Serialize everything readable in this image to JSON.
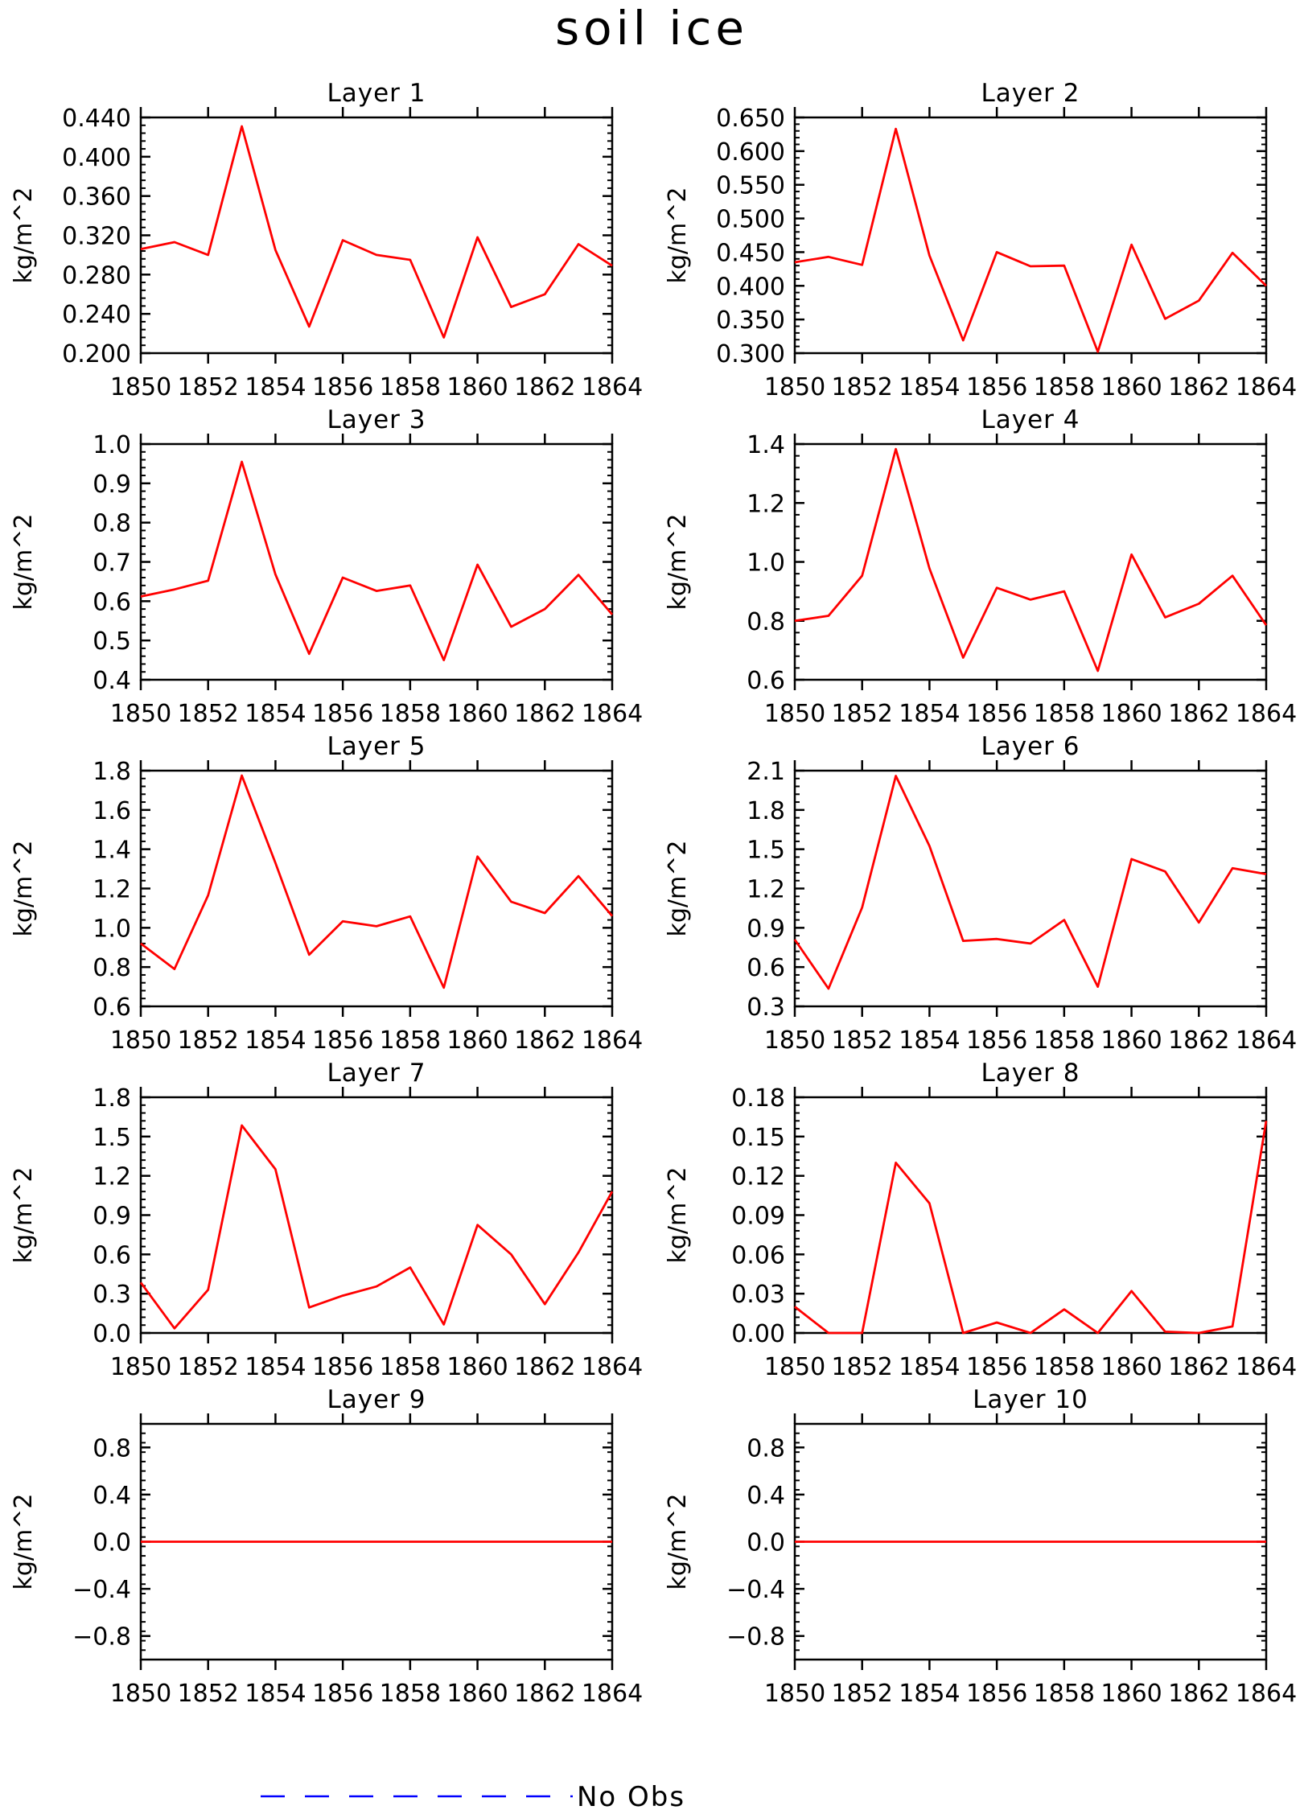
{
  "figure": {
    "title": "soil ice",
    "colors": {
      "series": "#ff0000",
      "obs": "#0000ff",
      "axis": "#000000"
    },
    "legend": {
      "label": "No Obs",
      "line_style": "dashed"
    }
  },
  "chart_data": [
    {
      "type": "line",
      "title": "Layer 1",
      "xlabel": "",
      "ylabel": "kg/m^2",
      "xlim": [
        1850,
        1864
      ],
      "ylim": [
        0.2,
        0.44
      ],
      "xticks": [
        "1850",
        "1852",
        "1854",
        "1856",
        "1858",
        "1860",
        "1862",
        "1864"
      ],
      "yticks": [
        "0.200",
        "0.240",
        "0.280",
        "0.320",
        "0.360",
        "0.400",
        "0.440"
      ],
      "x": [
        1850,
        1851,
        1852,
        1853,
        1854,
        1855,
        1856,
        1857,
        1858,
        1859,
        1860,
        1861,
        1862,
        1863,
        1864
      ],
      "series": [
        {
          "values": [
            0.306,
            0.313,
            0.3,
            0.431,
            0.305,
            0.227,
            0.315,
            0.3,
            0.295,
            0.216,
            0.318,
            0.247,
            0.26,
            0.311,
            0.289
          ]
        }
      ]
    },
    {
      "type": "line",
      "title": "Layer 2",
      "xlabel": "",
      "ylabel": "kg/m^2",
      "xlim": [
        1850,
        1864
      ],
      "ylim": [
        0.3,
        0.65
      ],
      "xticks": [
        "1850",
        "1852",
        "1854",
        "1856",
        "1858",
        "1860",
        "1862",
        "1864"
      ],
      "yticks": [
        "0.300",
        "0.350",
        "0.400",
        "0.450",
        "0.500",
        "0.550",
        "0.600",
        "0.650"
      ],
      "x": [
        1850,
        1851,
        1852,
        1853,
        1854,
        1855,
        1856,
        1857,
        1858,
        1859,
        1860,
        1861,
        1862,
        1863,
        1864
      ],
      "series": [
        {
          "values": [
            0.435,
            0.443,
            0.431,
            0.633,
            0.445,
            0.319,
            0.45,
            0.429,
            0.43,
            0.302,
            0.461,
            0.351,
            0.378,
            0.449,
            0.4
          ]
        }
      ]
    },
    {
      "type": "line",
      "title": "Layer 3",
      "xlabel": "",
      "ylabel": "kg/m^2",
      "xlim": [
        1850,
        1864
      ],
      "ylim": [
        0.4,
        1.0
      ],
      "xticks": [
        "1850",
        "1852",
        "1854",
        "1856",
        "1858",
        "1860",
        "1862",
        "1864"
      ],
      "yticks": [
        "0.4",
        "0.5",
        "0.6",
        "0.7",
        "0.8",
        "0.9",
        "1.0"
      ],
      "x": [
        1850,
        1851,
        1852,
        1853,
        1854,
        1855,
        1856,
        1857,
        1858,
        1859,
        1860,
        1861,
        1862,
        1863,
        1864
      ],
      "series": [
        {
          "values": [
            0.612,
            0.63,
            0.652,
            0.955,
            0.668,
            0.466,
            0.66,
            0.626,
            0.64,
            0.45,
            0.693,
            0.535,
            0.58,
            0.667,
            0.566
          ]
        }
      ]
    },
    {
      "type": "line",
      "title": "Layer 4",
      "xlabel": "",
      "ylabel": "kg/m^2",
      "xlim": [
        1850,
        1864
      ],
      "ylim": [
        0.6,
        1.4
      ],
      "xticks": [
        "1850",
        "1852",
        "1854",
        "1856",
        "1858",
        "1860",
        "1862",
        "1864"
      ],
      "yticks": [
        "0.6",
        "0.8",
        "1.0",
        "1.2",
        "1.4"
      ],
      "x": [
        1850,
        1851,
        1852,
        1853,
        1854,
        1855,
        1856,
        1857,
        1858,
        1859,
        1860,
        1861,
        1862,
        1863,
        1864
      ],
      "series": [
        {
          "values": [
            0.8,
            0.817,
            0.953,
            1.383,
            0.978,
            0.675,
            0.912,
            0.872,
            0.9,
            0.63,
            1.025,
            0.812,
            0.858,
            0.953,
            0.785
          ]
        }
      ]
    },
    {
      "type": "line",
      "title": "Layer 5",
      "xlabel": "",
      "ylabel": "kg/m^2",
      "xlim": [
        1850,
        1864
      ],
      "ylim": [
        0.6,
        1.8
      ],
      "xticks": [
        "1850",
        "1852",
        "1854",
        "1856",
        "1858",
        "1860",
        "1862",
        "1864"
      ],
      "yticks": [
        "0.6",
        "0.8",
        "1.0",
        "1.2",
        "1.4",
        "1.6",
        "1.8"
      ],
      "x": [
        1850,
        1851,
        1852,
        1853,
        1854,
        1855,
        1856,
        1857,
        1858,
        1859,
        1860,
        1861,
        1862,
        1863,
        1864
      ],
      "series": [
        {
          "values": [
            0.92,
            0.79,
            1.165,
            1.775,
            1.33,
            0.863,
            1.033,
            1.008,
            1.058,
            0.695,
            1.363,
            1.133,
            1.075,
            1.263,
            1.06
          ]
        }
      ]
    },
    {
      "type": "line",
      "title": "Layer 6",
      "xlabel": "",
      "ylabel": "kg/m^2",
      "xlim": [
        1850,
        1864
      ],
      "ylim": [
        0.3,
        2.1
      ],
      "xticks": [
        "1850",
        "1852",
        "1854",
        "1856",
        "1858",
        "1860",
        "1862",
        "1864"
      ],
      "yticks": [
        "0.3",
        "0.6",
        "0.9",
        "1.2",
        "1.5",
        "1.8",
        "2.1"
      ],
      "x": [
        1850,
        1851,
        1852,
        1853,
        1854,
        1855,
        1856,
        1857,
        1858,
        1859,
        1860,
        1861,
        1862,
        1863,
        1864
      ],
      "series": [
        {
          "values": [
            0.81,
            0.435,
            1.055,
            2.06,
            1.525,
            0.8,
            0.815,
            0.78,
            0.96,
            0.45,
            1.425,
            1.33,
            0.94,
            1.355,
            1.31
          ]
        }
      ]
    },
    {
      "type": "line",
      "title": "Layer 7",
      "xlabel": "",
      "ylabel": "kg/m^2",
      "xlim": [
        1850,
        1864
      ],
      "ylim": [
        0.0,
        1.8
      ],
      "xticks": [
        "1850",
        "1852",
        "1854",
        "1856",
        "1858",
        "1860",
        "1862",
        "1864"
      ],
      "yticks": [
        "0.0",
        "0.3",
        "0.6",
        "0.9",
        "1.2",
        "1.5",
        "1.8"
      ],
      "x": [
        1850,
        1851,
        1852,
        1853,
        1854,
        1855,
        1856,
        1857,
        1858,
        1859,
        1860,
        1861,
        1862,
        1863,
        1864
      ],
      "series": [
        {
          "values": [
            0.385,
            0.035,
            0.33,
            1.585,
            1.25,
            0.195,
            0.285,
            0.355,
            0.5,
            0.065,
            0.825,
            0.6,
            0.22,
            0.615,
            1.08
          ]
        }
      ]
    },
    {
      "type": "line",
      "title": "Layer 8",
      "xlabel": "",
      "ylabel": "kg/m^2",
      "xlim": [
        1850,
        1864
      ],
      "ylim": [
        0.0,
        0.18
      ],
      "xticks": [
        "1850",
        "1852",
        "1854",
        "1856",
        "1858",
        "1860",
        "1862",
        "1864"
      ],
      "yticks": [
        "0.00",
        "0.03",
        "0.06",
        "0.09",
        "0.12",
        "0.15",
        "0.18"
      ],
      "x": [
        1850,
        1851,
        1852,
        1853,
        1854,
        1855,
        1856,
        1857,
        1858,
        1859,
        1860,
        1861,
        1862,
        1863,
        1864
      ],
      "series": [
        {
          "values": [
            0.02,
            0.0,
            0.0,
            0.13,
            0.099,
            0.0,
            0.008,
            0.0,
            0.018,
            0.0,
            0.032,
            0.001,
            0.0,
            0.005,
            0.162
          ]
        }
      ]
    },
    {
      "type": "line",
      "title": "Layer 9",
      "xlabel": "",
      "ylabel": "kg/m^2",
      "xlim": [
        1850,
        1864
      ],
      "ylim": [
        -1.0,
        1.0
      ],
      "xticks": [
        "1850",
        "1852",
        "1854",
        "1856",
        "1858",
        "1860",
        "1862",
        "1864"
      ],
      "yticks": [
        "−0.8",
        "−0.4",
        "0.0",
        "0.4",
        "0.8"
      ],
      "yticks_values": [
        -0.8,
        -0.4,
        0.0,
        0.4,
        0.8
      ],
      "x": [
        1850,
        1851,
        1852,
        1853,
        1854,
        1855,
        1856,
        1857,
        1858,
        1859,
        1860,
        1861,
        1862,
        1863,
        1864
      ],
      "series": [
        {
          "values": [
            0,
            0,
            0,
            0,
            0,
            0,
            0,
            0,
            0,
            0,
            0,
            0,
            0,
            0,
            0
          ]
        }
      ]
    },
    {
      "type": "line",
      "title": "Layer 10",
      "xlabel": "",
      "ylabel": "kg/m^2",
      "xlim": [
        1850,
        1864
      ],
      "ylim": [
        -1.0,
        1.0
      ],
      "xticks": [
        "1850",
        "1852",
        "1854",
        "1856",
        "1858",
        "1860",
        "1862",
        "1864"
      ],
      "yticks": [
        "−0.8",
        "−0.4",
        "0.0",
        "0.4",
        "0.8"
      ],
      "yticks_values": [
        -0.8,
        -0.4,
        0.0,
        0.4,
        0.8
      ],
      "x": [
        1850,
        1851,
        1852,
        1853,
        1854,
        1855,
        1856,
        1857,
        1858,
        1859,
        1860,
        1861,
        1862,
        1863,
        1864
      ],
      "series": [
        {
          "values": [
            0,
            0,
            0,
            0,
            0,
            0,
            0,
            0,
            0,
            0,
            0,
            0,
            0,
            0,
            0
          ]
        }
      ]
    }
  ]
}
